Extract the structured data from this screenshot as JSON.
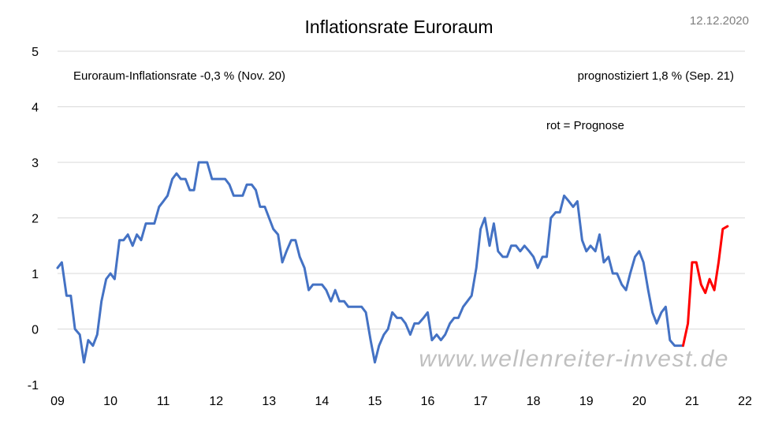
{
  "chart_data": {
    "type": "line",
    "title": "Inflationsrate Euroraum",
    "date": "12.12.2020",
    "watermark": "www.wellenreiter-invest.de",
    "annotations": {
      "current": "Euroraum-Inflationsrate -0,3 % (Nov. 20)",
      "forecast": "prognostiziert  1,8 % (Sep. 21)",
      "legend_note": "rot = Prognose"
    },
    "xlabel": "",
    "ylabel": "",
    "xlim": [
      2009,
      2022
    ],
    "ylim": [
      -1,
      5
    ],
    "x_tick_labels": [
      "09",
      "10",
      "11",
      "12",
      "13",
      "14",
      "15",
      "16",
      "17",
      "18",
      "19",
      "20",
      "21",
      "22"
    ],
    "y_tick_labels": [
      "-1",
      "0",
      "1",
      "2",
      "3",
      "4",
      "5"
    ],
    "y_ticks": [
      -1,
      0,
      1,
      2,
      3,
      4,
      5
    ],
    "grid": true,
    "colors": {
      "actual": "#4472C4",
      "forecast": "#FF0000",
      "grid": "#d9d9d9",
      "text": "#000000",
      "date": "#7f7f7f",
      "watermark": "#c0c0c0"
    },
    "series": [
      {
        "name": "Euroraum-Inflationsrate",
        "color": "#4472C4",
        "x": [
          2009.0,
          2009.08,
          2009.17,
          2009.25,
          2009.33,
          2009.42,
          2009.5,
          2009.58,
          2009.67,
          2009.75,
          2009.83,
          2009.92,
          2010.0,
          2010.08,
          2010.17,
          2010.25,
          2010.33,
          2010.42,
          2010.5,
          2010.58,
          2010.67,
          2010.75,
          2010.83,
          2010.92,
          2011.0,
          2011.08,
          2011.17,
          2011.25,
          2011.33,
          2011.42,
          2011.5,
          2011.58,
          2011.67,
          2011.75,
          2011.83,
          2011.92,
          2012.0,
          2012.08,
          2012.17,
          2012.25,
          2012.33,
          2012.42,
          2012.5,
          2012.58,
          2012.67,
          2012.75,
          2012.83,
          2012.92,
          2013.0,
          2013.08,
          2013.17,
          2013.25,
          2013.33,
          2013.42,
          2013.5,
          2013.58,
          2013.67,
          2013.75,
          2013.83,
          2013.92,
          2014.0,
          2014.08,
          2014.17,
          2014.25,
          2014.33,
          2014.42,
          2014.5,
          2014.58,
          2014.67,
          2014.75,
          2014.83,
          2014.92,
          2015.0,
          2015.08,
          2015.17,
          2015.25,
          2015.33,
          2015.42,
          2015.5,
          2015.58,
          2015.67,
          2015.75,
          2015.83,
          2015.92,
          2016.0,
          2016.08,
          2016.17,
          2016.25,
          2016.33,
          2016.42,
          2016.5,
          2016.58,
          2016.67,
          2016.75,
          2016.83,
          2016.92,
          2017.0,
          2017.08,
          2017.17,
          2017.25,
          2017.33,
          2017.42,
          2017.5,
          2017.58,
          2017.67,
          2017.75,
          2017.83,
          2017.92,
          2018.0,
          2018.08,
          2018.17,
          2018.25,
          2018.33,
          2018.42,
          2018.5,
          2018.58,
          2018.67,
          2018.75,
          2018.83,
          2018.92,
          2019.0,
          2019.08,
          2019.17,
          2019.25,
          2019.33,
          2019.42,
          2019.5,
          2019.58,
          2019.67,
          2019.75,
          2019.83,
          2019.92,
          2020.0,
          2020.08,
          2020.17,
          2020.25,
          2020.33,
          2020.42,
          2020.5,
          2020.58,
          2020.67,
          2020.75,
          2020.83
        ],
        "values": [
          1.1,
          1.2,
          0.6,
          0.6,
          0.0,
          -0.1,
          -0.6,
          -0.2,
          -0.3,
          -0.1,
          0.5,
          0.9,
          1.0,
          0.9,
          1.6,
          1.6,
          1.7,
          1.5,
          1.7,
          1.6,
          1.9,
          1.9,
          1.9,
          2.2,
          2.3,
          2.4,
          2.7,
          2.8,
          2.7,
          2.7,
          2.5,
          2.5,
          3.0,
          3.0,
          3.0,
          2.7,
          2.7,
          2.7,
          2.7,
          2.6,
          2.4,
          2.4,
          2.4,
          2.6,
          2.6,
          2.5,
          2.2,
          2.2,
          2.0,
          1.8,
          1.7,
          1.2,
          1.4,
          1.6,
          1.6,
          1.3,
          1.1,
          0.7,
          0.8,
          0.8,
          0.8,
          0.7,
          0.5,
          0.7,
          0.5,
          0.5,
          0.4,
          0.4,
          0.4,
          0.4,
          0.3,
          -0.2,
          -0.6,
          -0.3,
          -0.1,
          0.0,
          0.3,
          0.2,
          0.2,
          0.1,
          -0.1,
          0.1,
          0.1,
          0.2,
          0.3,
          -0.2,
          -0.1,
          -0.2,
          -0.1,
          0.1,
          0.2,
          0.2,
          0.4,
          0.5,
          0.6,
          1.1,
          1.8,
          2.0,
          1.5,
          1.9,
          1.4,
          1.3,
          1.3,
          1.5,
          1.5,
          1.4,
          1.5,
          1.4,
          1.3,
          1.1,
          1.3,
          1.3,
          2.0,
          2.1,
          2.1,
          2.4,
          2.3,
          2.2,
          2.3,
          1.6,
          1.4,
          1.5,
          1.4,
          1.7,
          1.2,
          1.3,
          1.0,
          1.0,
          0.8,
          0.7,
          1.0,
          1.3,
          1.4,
          1.2,
          0.7,
          0.3,
          0.1,
          0.3,
          0.4,
          -0.2,
          -0.3,
          -0.3,
          -0.3
        ]
      },
      {
        "name": "Prognose",
        "color": "#FF0000",
        "x": [
          2020.83,
          2020.92,
          2021.0,
          2021.08,
          2021.17,
          2021.25,
          2021.33,
          2021.42,
          2021.5,
          2021.58,
          2021.67
        ],
        "values": [
          -0.3,
          0.1,
          1.2,
          1.2,
          0.8,
          0.65,
          0.9,
          0.7,
          1.2,
          1.8,
          1.85
        ]
      }
    ]
  }
}
